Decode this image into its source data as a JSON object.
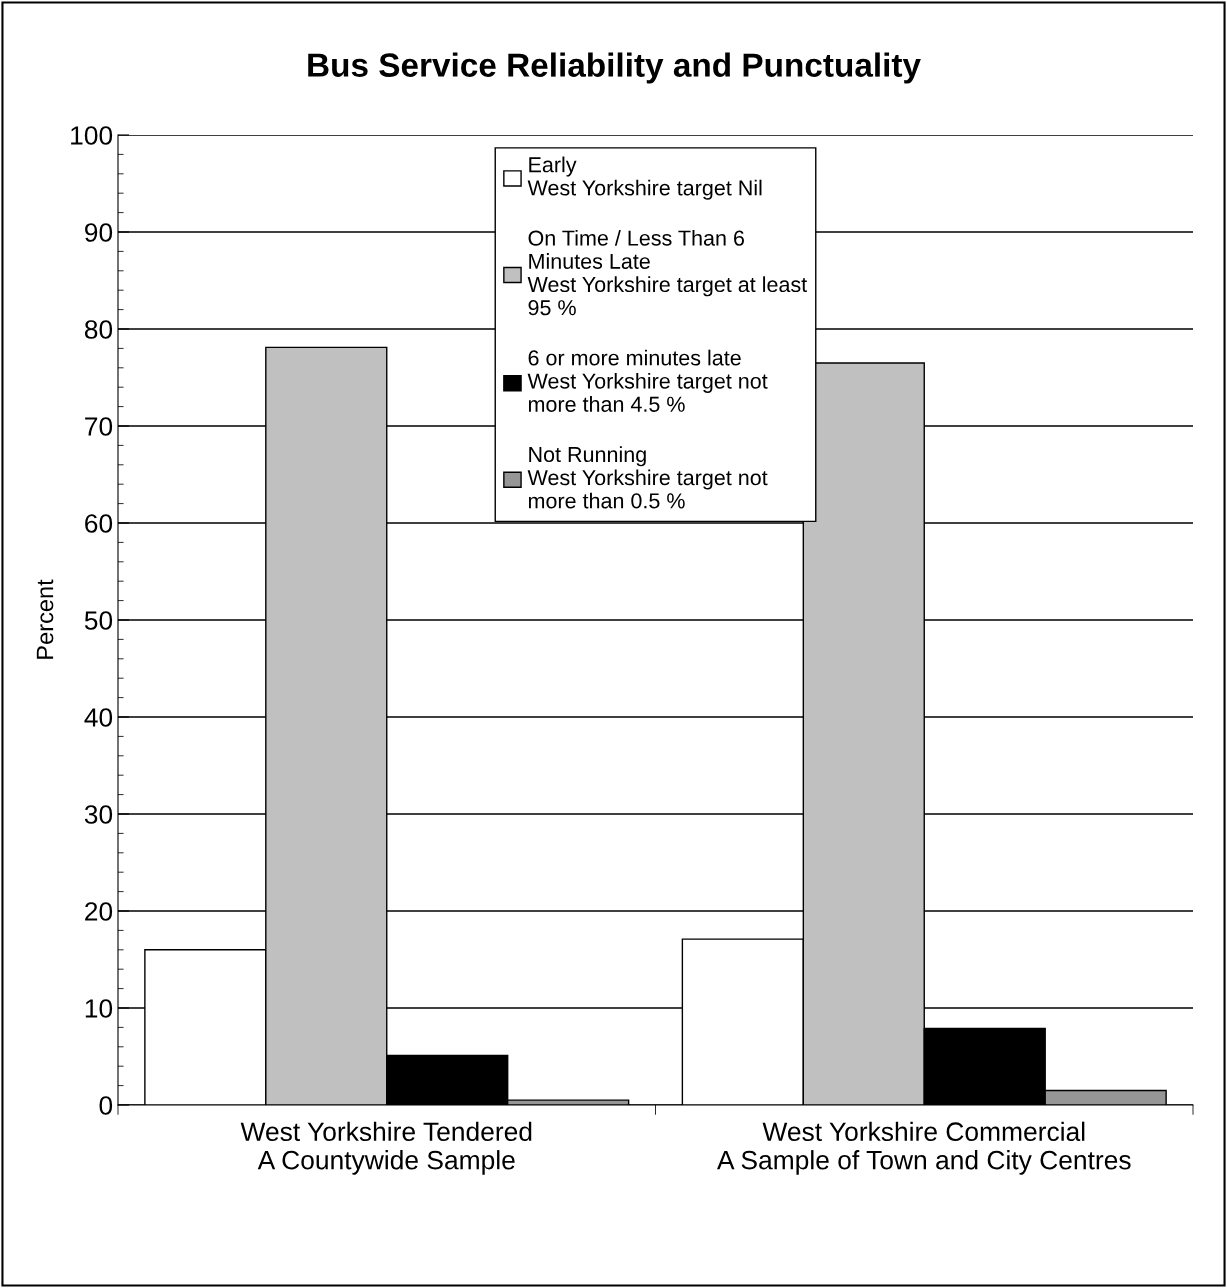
{
  "chart_data": {
    "type": "bar",
    "title": "Bus Service Reliability and Punctuality",
    "ylabel": "Percent",
    "categories": [
      "West Yorkshire Tendered\nA Countywide Sample",
      "West Yorkshire Commercial\nA Sample of Town and City Centres"
    ],
    "series": [
      {
        "name": "Early\nWest Yorkshire target Nil",
        "color": "#ffffff",
        "values": [
          16.0,
          17.1
        ]
      },
      {
        "name": "On Time / Less Than 6\nMinutes Late\nWest Yorkshire target at least\n95 %",
        "color": "#c0c0c0",
        "values": [
          78.1,
          76.5
        ]
      },
      {
        "name": "6 or more minutes late\nWest Yorkshire target not\nmore than 4.5 %",
        "color": "#000000",
        "values": [
          5.1,
          7.9
        ]
      },
      {
        "name": "Not Running\nWest Yorkshire target not\nmore than 0.5 %",
        "color": "#969696",
        "values": [
          0.5,
          1.5
        ]
      }
    ],
    "ylim": [
      0,
      100
    ],
    "yticks": [
      0,
      10,
      20,
      30,
      40,
      50,
      60,
      70,
      80,
      90,
      100
    ],
    "grid": "y",
    "legend": "top"
  }
}
